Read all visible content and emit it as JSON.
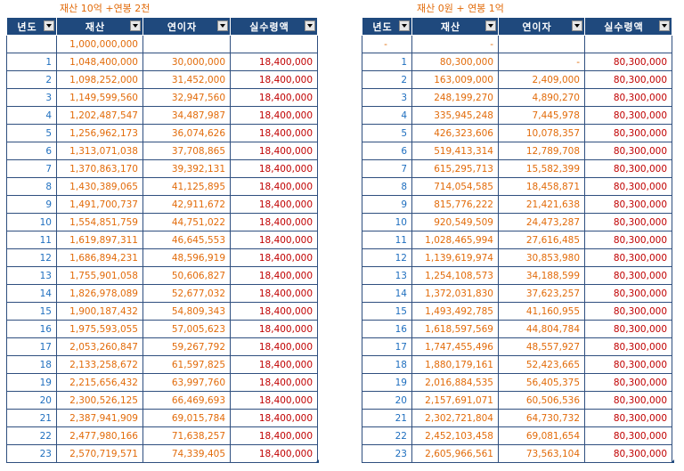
{
  "left": {
    "title": "재산 10억 +연봉 2천",
    "headers": [
      "년도",
      "재산",
      "연이자",
      "실수령액"
    ],
    "first_row": [
      "",
      "1,000,000,000",
      "",
      ""
    ],
    "rows": [
      [
        "1",
        "1,048,400,000",
        "30,000,000",
        "18,400,000"
      ],
      [
        "2",
        "1,098,252,000",
        "31,452,000",
        "18,400,000"
      ],
      [
        "3",
        "1,149,599,560",
        "32,947,560",
        "18,400,000"
      ],
      [
        "4",
        "1,202,487,547",
        "34,487,987",
        "18,400,000"
      ],
      [
        "5",
        "1,256,962,173",
        "36,074,626",
        "18,400,000"
      ],
      [
        "6",
        "1,313,071,038",
        "37,708,865",
        "18,400,000"
      ],
      [
        "7",
        "1,370,863,170",
        "39,392,131",
        "18,400,000"
      ],
      [
        "8",
        "1,430,389,065",
        "41,125,895",
        "18,400,000"
      ],
      [
        "9",
        "1,491,700,737",
        "42,911,672",
        "18,400,000"
      ],
      [
        "10",
        "1,554,851,759",
        "44,751,022",
        "18,400,000"
      ],
      [
        "11",
        "1,619,897,311",
        "46,645,553",
        "18,400,000"
      ],
      [
        "12",
        "1,686,894,231",
        "48,596,919",
        "18,400,000"
      ],
      [
        "13",
        "1,755,901,058",
        "50,606,827",
        "18,400,000"
      ],
      [
        "14",
        "1,826,978,089",
        "52,677,032",
        "18,400,000"
      ],
      [
        "15",
        "1,900,187,432",
        "54,809,343",
        "18,400,000"
      ],
      [
        "16",
        "1,975,593,055",
        "57,005,623",
        "18,400,000"
      ],
      [
        "17",
        "2,053,260,847",
        "59,267,792",
        "18,400,000"
      ],
      [
        "18",
        "2,133,258,672",
        "61,597,825",
        "18,400,000"
      ],
      [
        "19",
        "2,215,656,432",
        "63,997,760",
        "18,400,000"
      ],
      [
        "20",
        "2,300,526,125",
        "66,469,693",
        "18,400,000"
      ],
      [
        "21",
        "2,387,941,909",
        "69,015,784",
        "18,400,000"
      ],
      [
        "22",
        "2,477,980,166",
        "71,638,257",
        "18,400,000"
      ],
      [
        "23",
        "2,570,719,571",
        "74,339,405",
        "18,400,000"
      ]
    ]
  },
  "right": {
    "title": "재산 0원 + 연봉 1억",
    "headers": [
      "년도",
      "재산",
      "연이자",
      "실수령액"
    ],
    "first_row": [
      "-",
      "-",
      "",
      ""
    ],
    "rows": [
      [
        "1",
        "80,300,000",
        "-",
        "80,300,000"
      ],
      [
        "2",
        "163,009,000",
        "2,409,000",
        "80,300,000"
      ],
      [
        "3",
        "248,199,270",
        "4,890,270",
        "80,300,000"
      ],
      [
        "4",
        "335,945,248",
        "7,445,978",
        "80,300,000"
      ],
      [
        "5",
        "426,323,606",
        "10,078,357",
        "80,300,000"
      ],
      [
        "6",
        "519,413,314",
        "12,789,708",
        "80,300,000"
      ],
      [
        "7",
        "615,295,713",
        "15,582,399",
        "80,300,000"
      ],
      [
        "8",
        "714,054,585",
        "18,458,871",
        "80,300,000"
      ],
      [
        "9",
        "815,776,222",
        "21,421,638",
        "80,300,000"
      ],
      [
        "10",
        "920,549,509",
        "24,473,287",
        "80,300,000"
      ],
      [
        "11",
        "1,028,465,994",
        "27,616,485",
        "80,300,000"
      ],
      [
        "12",
        "1,139,619,974",
        "30,853,980",
        "80,300,000"
      ],
      [
        "13",
        "1,254,108,573",
        "34,188,599",
        "80,300,000"
      ],
      [
        "14",
        "1,372,031,830",
        "37,623,257",
        "80,300,000"
      ],
      [
        "15",
        "1,493,492,785",
        "41,160,955",
        "80,300,000"
      ],
      [
        "16",
        "1,618,597,569",
        "44,804,784",
        "80,300,000"
      ],
      [
        "17",
        "1,747,455,496",
        "48,557,927",
        "80,300,000"
      ],
      [
        "18",
        "1,880,179,161",
        "52,423,665",
        "80,300,000"
      ],
      [
        "19",
        "2,016,884,535",
        "56,405,375",
        "80,300,000"
      ],
      [
        "20",
        "2,157,691,071",
        "60,506,536",
        "80,300,000"
      ],
      [
        "21",
        "2,302,721,804",
        "64,730,732",
        "80,300,000"
      ],
      [
        "22",
        "2,452,103,458",
        "69,081,654",
        "80,300,000"
      ],
      [
        "23",
        "2,605,966,561",
        "73,563,104",
        "80,300,000"
      ]
    ]
  }
}
